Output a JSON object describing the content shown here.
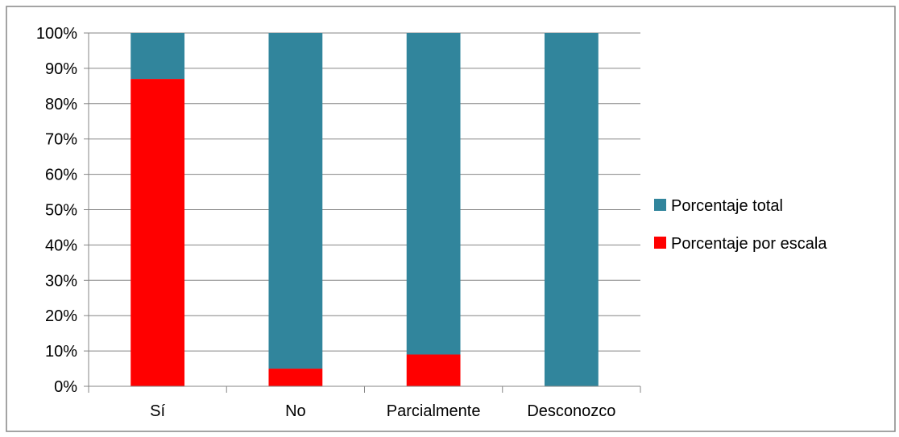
{
  "chart_data": {
    "type": "bar",
    "stacked": true,
    "categories": [
      "Sí",
      "No",
      "Parcialmente",
      "Desconozco"
    ],
    "series": [
      {
        "name": "Porcentaje por escala",
        "color": "#ff0000",
        "values": [
          87,
          5,
          9,
          0
        ]
      },
      {
        "name": "Porcentaje total",
        "color": "#31859c",
        "values": [
          13,
          95,
          91,
          100
        ]
      }
    ],
    "y_ticks": [
      "0%",
      "10%",
      "20%",
      "30%",
      "40%",
      "50%",
      "60%",
      "70%",
      "80%",
      "90%",
      "100%"
    ],
    "ylim": [
      0,
      100
    ],
    "grid": true,
    "legend_position": "right",
    "legend_entries": [
      "Porcentaje total",
      "Porcentaje por escala"
    ]
  }
}
